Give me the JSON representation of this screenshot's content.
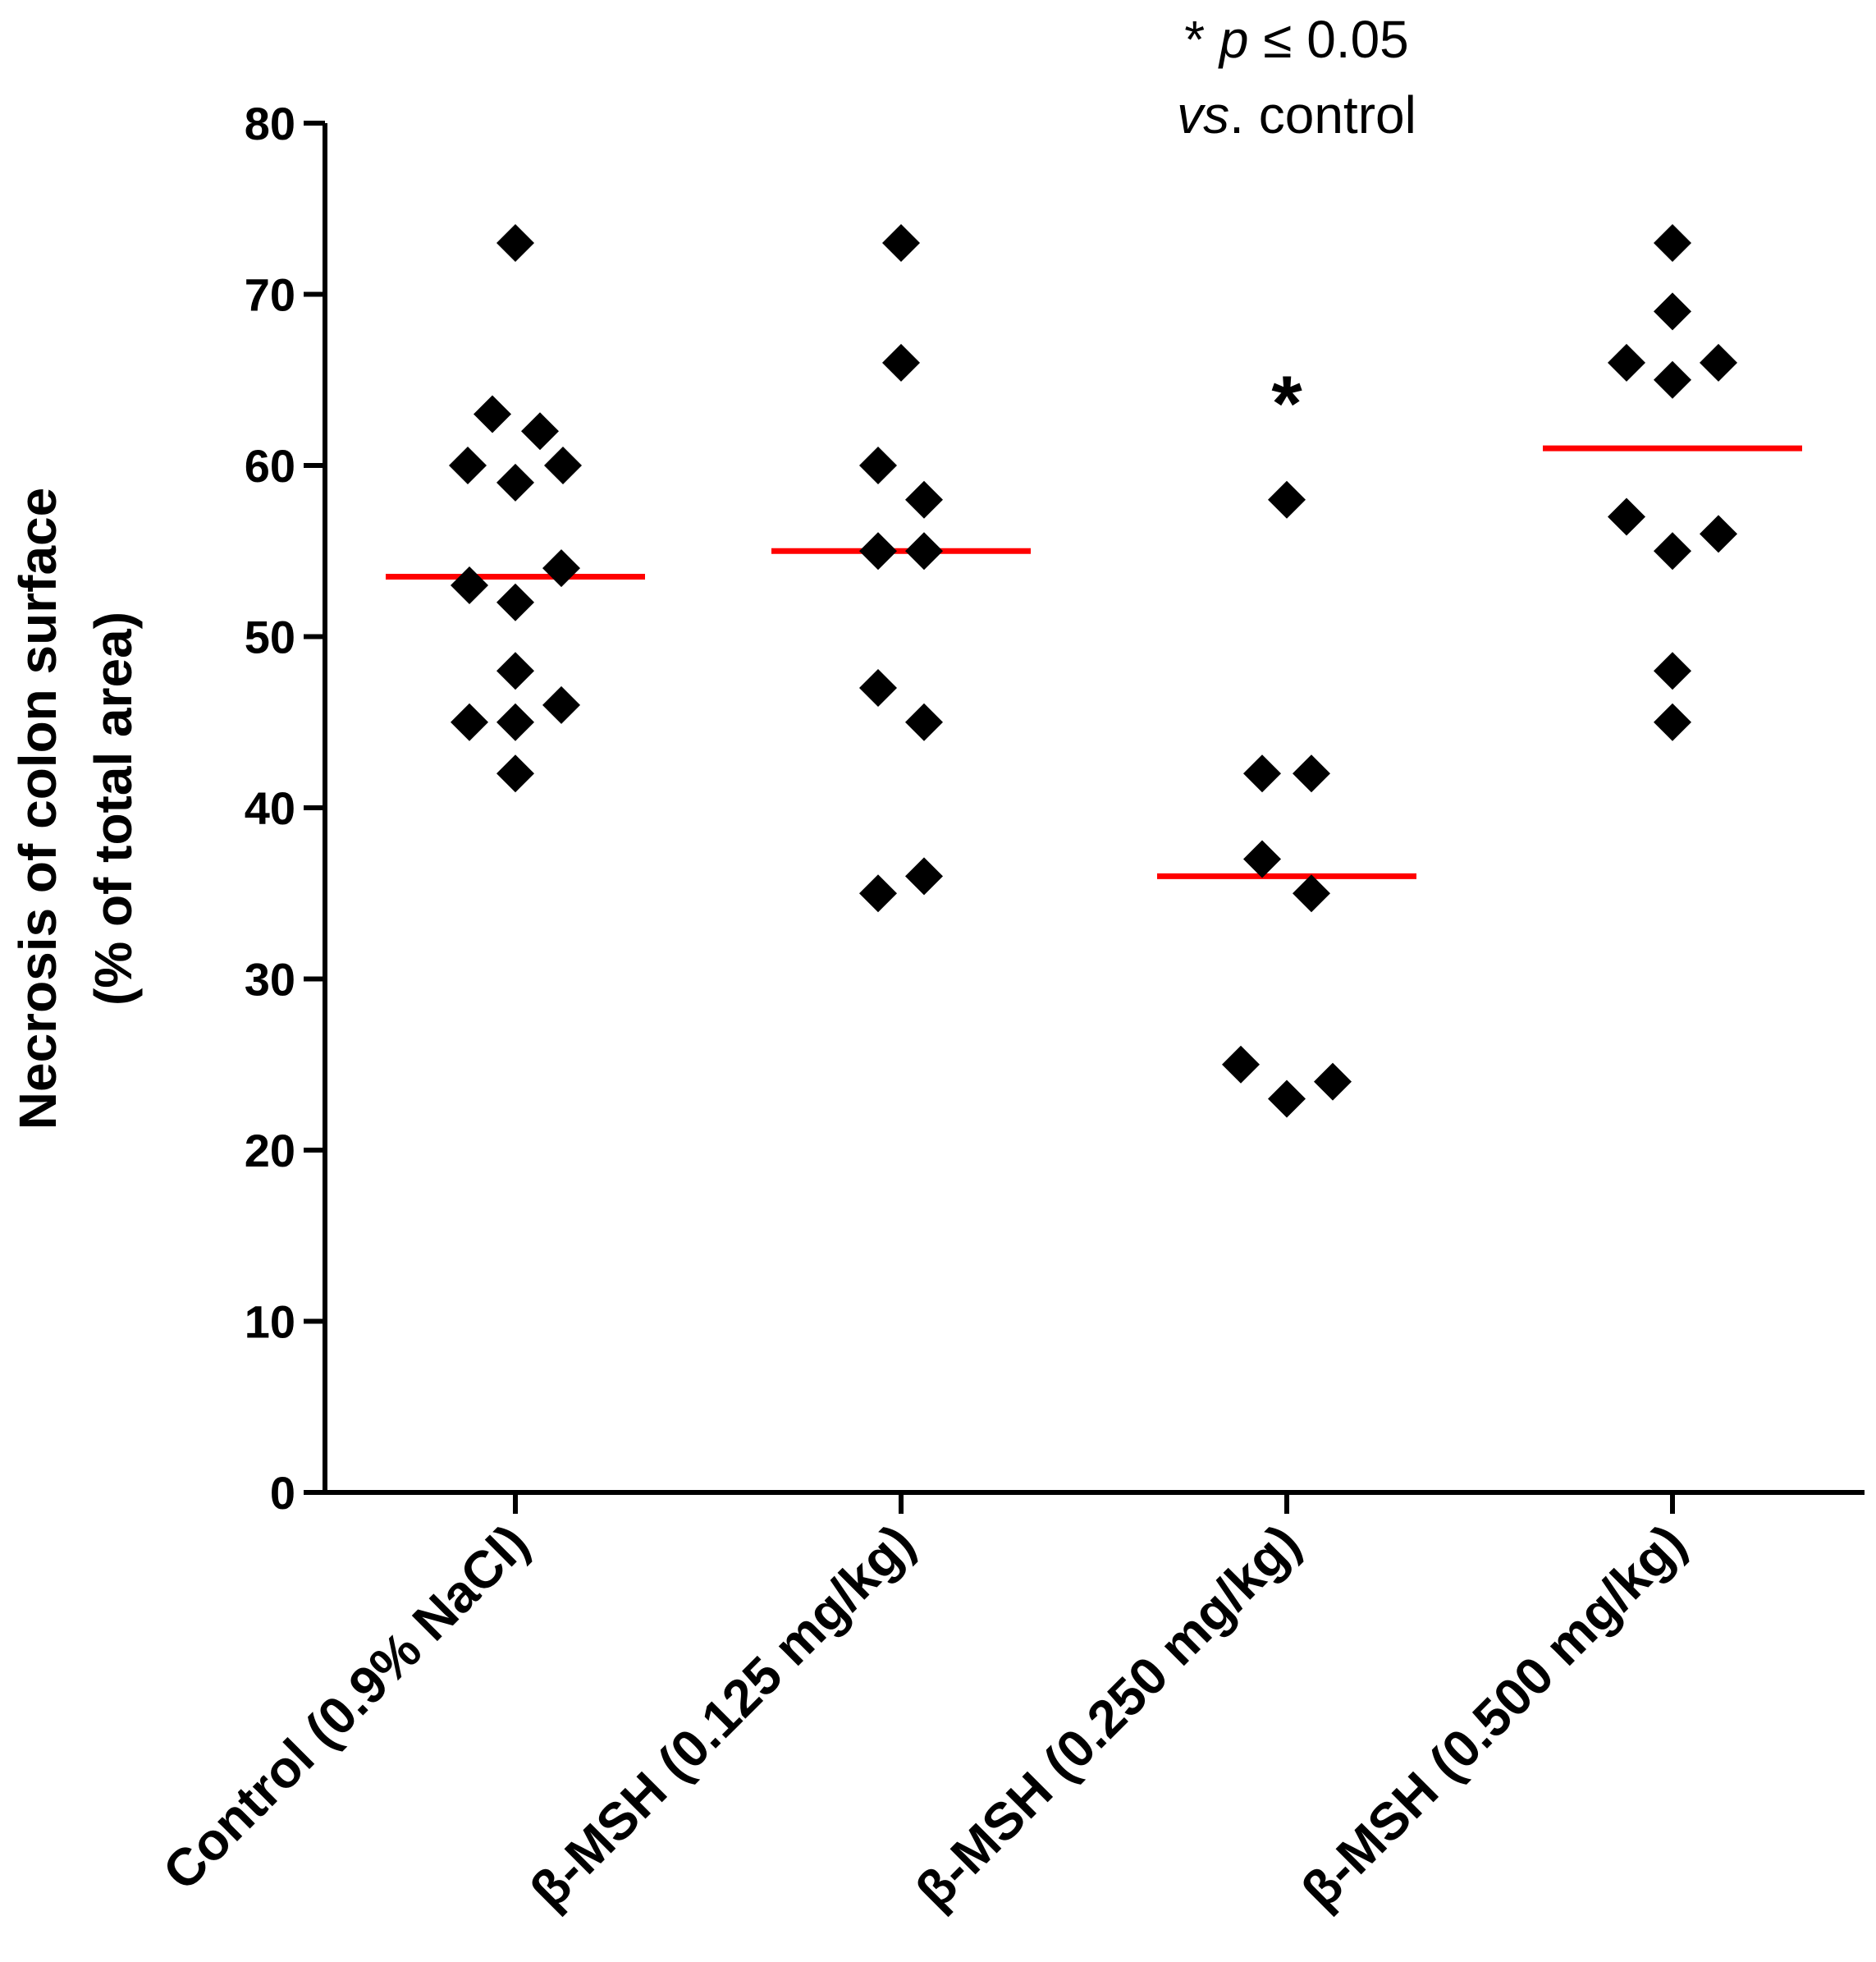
{
  "chart_data": {
    "type": "scatter",
    "ylabel_line1": "Necrosis of colon surface",
    "ylabel_line2": "(% of total area)",
    "ylim": [
      0,
      80
    ],
    "yticks": [
      0,
      10,
      20,
      30,
      40,
      50,
      60,
      70,
      80
    ],
    "categories": [
      "Control (0.9% NaCl)",
      "β-MSH (0.125 mg/kg)",
      "β-MSH (0.250 mg/kg)",
      "β-MSH (0.500 mg/kg)"
    ],
    "series": [
      {
        "name": "Control (0.9% NaCl)",
        "values": [
          73,
          63,
          62,
          60,
          60,
          59,
          54,
          53,
          52,
          48,
          46,
          45,
          45,
          42
        ],
        "median": 53.5
      },
      {
        "name": "β-MSH (0.125 mg/kg)",
        "values": [
          73,
          66,
          60,
          58,
          55,
          55,
          47,
          45,
          36,
          35
        ],
        "median": 55
      },
      {
        "name": "β-MSH (0.250 mg/kg)",
        "values": [
          58,
          42,
          42,
          37,
          35,
          25,
          24,
          23
        ],
        "median": 36
      },
      {
        "name": "β-MSH (0.500 mg/kg)",
        "values": [
          73,
          69,
          66,
          66,
          65,
          57,
          56,
          55,
          48,
          45
        ],
        "median": 61
      }
    ],
    "significance_marker": "*",
    "significance_group": 2,
    "annotation_line1_prefix": "* ",
    "annotation_line1_italic": "p",
    "annotation_line1_rest": " ≤ 0.05",
    "annotation_line2_italic": "vs",
    "annotation_line2_rest": ". control",
    "median_color": "#ff0000",
    "marker_color": "#000000"
  }
}
